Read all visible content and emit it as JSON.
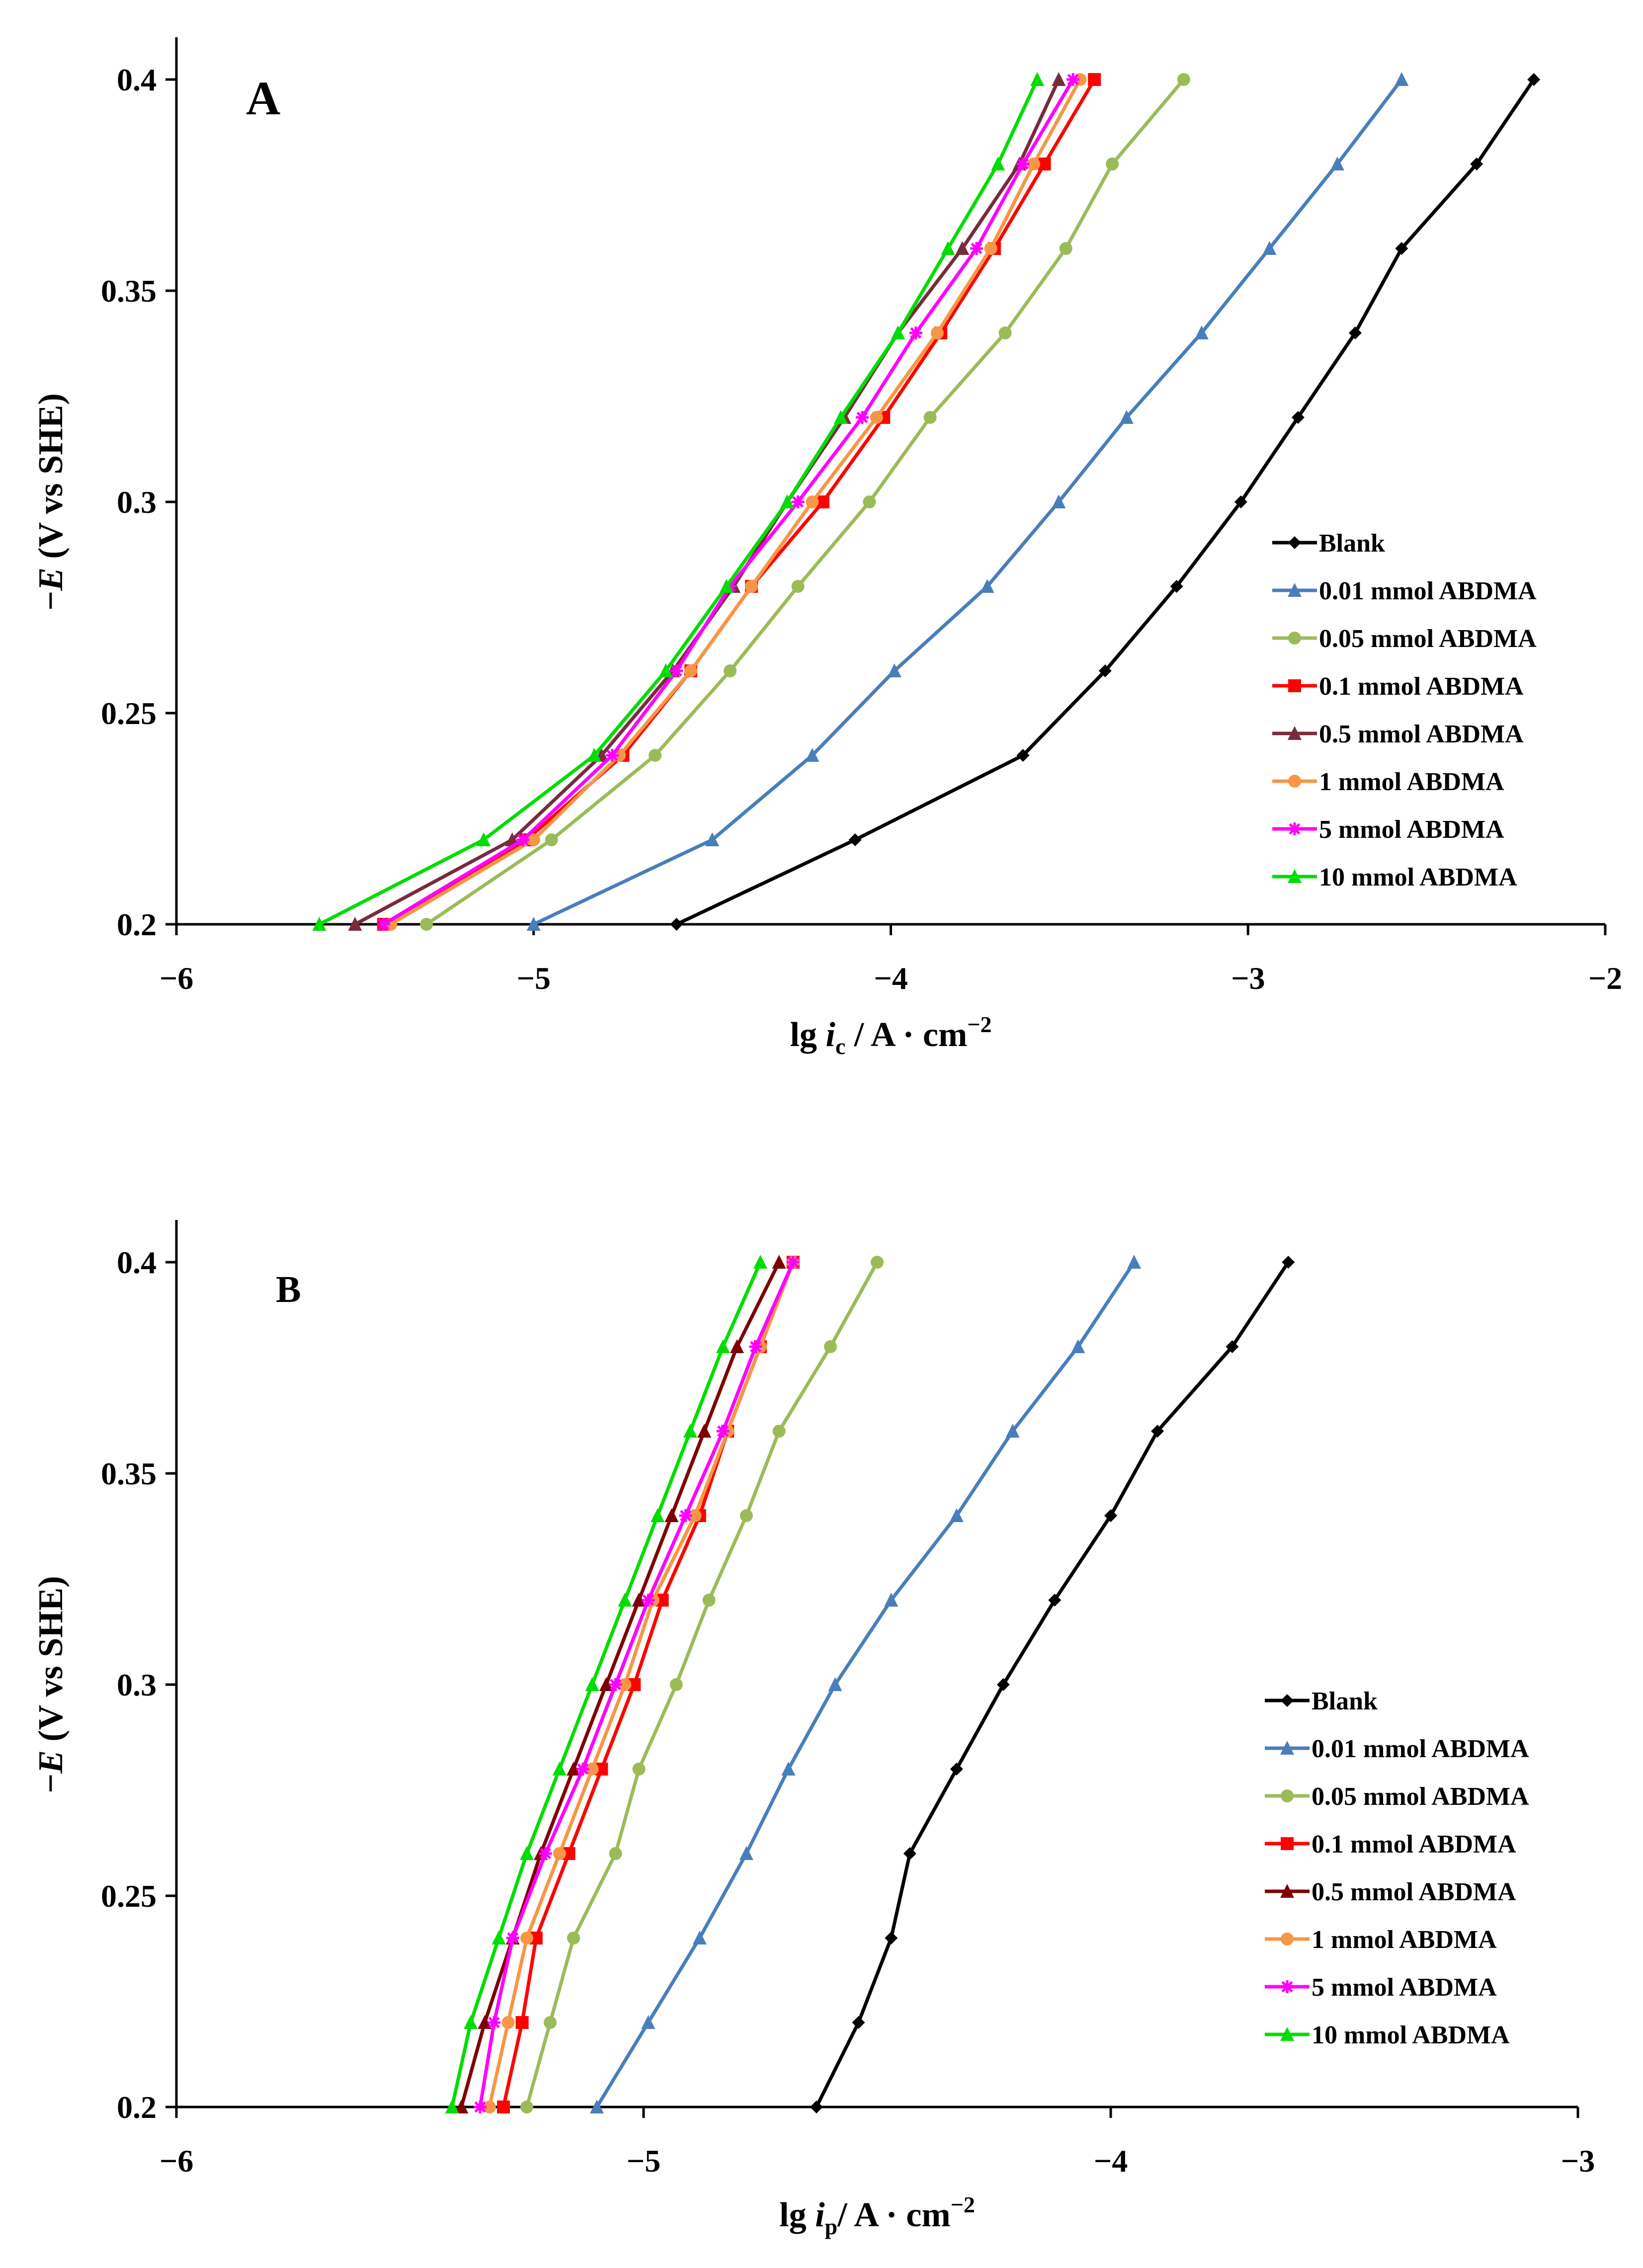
{
  "chart_data": [
    {
      "type": "line",
      "panel_label": "A",
      "xlabel": "lg i_c / A · cm^-2",
      "xlabel_parts": {
        "prefix": "lg ",
        "var": "i",
        "sub": "c",
        "unit": " / A · cm",
        "sup": "−2"
      },
      "ylabel": "-E (V vs SHE)",
      "ylabel_parts": {
        "sign": "−",
        "var": "E",
        "rest": " (V vs SHE)"
      },
      "xlim": [
        -6,
        -2
      ],
      "ylim": [
        0.2,
        0.4
      ],
      "xticks": [
        "−6",
        "−5",
        "−4",
        "−3",
        "−2"
      ],
      "yticks": [
        "0.2",
        "0.25",
        "0.3",
        "0.35",
        "0.4"
      ],
      "legend_position": "bottom-right",
      "y": [
        0.2,
        0.22,
        0.24,
        0.26,
        0.28,
        0.3,
        0.32,
        0.34,
        0.36,
        0.38,
        0.4
      ],
      "series": [
        {
          "name": "Blank",
          "color": "#000000",
          "marker": "diamond",
          "x": [
            -4.6,
            -4.1,
            -3.63,
            -3.4,
            -3.2,
            -3.02,
            -2.86,
            -2.7,
            -2.57,
            -2.36,
            -2.2
          ]
        },
        {
          "name": "0.01 mmol ABDMA",
          "color": "#4a7ebb",
          "marker": "triangle",
          "x": [
            -5.0,
            -4.5,
            -4.22,
            -3.99,
            -3.73,
            -3.53,
            -3.34,
            -3.13,
            -2.94,
            -2.75,
            -2.57
          ]
        },
        {
          "name": "0.05 mmol ABDMA",
          "color": "#9bbb59",
          "marker": "circle",
          "x": [
            -5.3,
            -4.95,
            -4.66,
            -4.45,
            -4.26,
            -4.06,
            -3.89,
            -3.68,
            -3.51,
            -3.38,
            -3.18
          ]
        },
        {
          "name": "0.1 mmol ABDMA",
          "color": "#ff0000",
          "marker": "square",
          "x": [
            -5.42,
            -5.02,
            -4.75,
            -4.56,
            -4.39,
            -4.19,
            -4.02,
            -3.86,
            -3.71,
            -3.57,
            -3.43
          ]
        },
        {
          "name": "0.5 mmol ABDMA",
          "color": "#772c3b",
          "marker": "triangle",
          "x": [
            -5.5,
            -5.06,
            -4.81,
            -4.61,
            -4.44,
            -4.29,
            -4.13,
            -3.98,
            -3.8,
            -3.64,
            -3.53
          ]
        },
        {
          "name": "1 mmol ABDMA",
          "color": "#f79646",
          "marker": "circle",
          "x": [
            -5.4,
            -5.0,
            -4.76,
            -4.56,
            -4.39,
            -4.22,
            -4.04,
            -3.87,
            -3.72,
            -3.6,
            -3.47
          ]
        },
        {
          "name": "5 mmol ABDMA",
          "color": "#ff00ff",
          "marker": "star",
          "x": [
            -5.42,
            -5.03,
            -4.78,
            -4.6,
            -4.45,
            -4.26,
            -4.08,
            -3.93,
            -3.76,
            -3.63,
            -3.49
          ]
        },
        {
          "name": "10 mmol ABDMA",
          "color": "#00dd00",
          "marker": "triangle",
          "x": [
            -5.6,
            -5.14,
            -4.83,
            -4.63,
            -4.46,
            -4.29,
            -4.14,
            -3.98,
            -3.84,
            -3.7,
            -3.59
          ]
        }
      ]
    },
    {
      "type": "line",
      "panel_label": "B",
      "xlabel": "lg i_p / A · cm^-2",
      "xlabel_parts": {
        "prefix": "lg ",
        "var": "i",
        "sub": "p",
        "unit": "/  A · cm",
        "sup": "−2"
      },
      "ylabel": "-E (V vs SHE)",
      "ylabel_parts": {
        "sign": "−",
        "var": "E",
        "rest": " (V vs SHE)"
      },
      "xlim": [
        -6,
        -3
      ],
      "ylim": [
        0.2,
        0.4
      ],
      "xticks": [
        "−6",
        "−5",
        "−4",
        "−3"
      ],
      "yticks": [
        "0.2",
        "0.25",
        "0.3",
        "0.35",
        "0.4"
      ],
      "legend_position": "bottom-right",
      "y": [
        0.2,
        0.22,
        0.24,
        0.26,
        0.28,
        0.3,
        0.32,
        0.34,
        0.36,
        0.38,
        0.4
      ],
      "series": [
        {
          "name": "Blank",
          "color": "#000000",
          "marker": "diamond",
          "x": [
            -4.63,
            -4.54,
            -4.47,
            -4.43,
            -4.33,
            -4.23,
            -4.12,
            -4.0,
            -3.9,
            -3.74,
            -3.62
          ]
        },
        {
          "name": "0.01 mmol ABDMA",
          "color": "#4a7ebb",
          "marker": "triangle",
          "x": [
            -5.1,
            -4.99,
            -4.88,
            -4.78,
            -4.69,
            -4.59,
            -4.47,
            -4.33,
            -4.21,
            -4.07,
            -3.95
          ]
        },
        {
          "name": "0.05 mmol ABDMA",
          "color": "#9bbb59",
          "marker": "circle",
          "x": [
            -5.25,
            -5.2,
            -5.15,
            -5.06,
            -5.01,
            -4.93,
            -4.86,
            -4.78,
            -4.71,
            -4.6,
            -4.5
          ]
        },
        {
          "name": "0.1 mmol ABDMA",
          "color": "#ff0000",
          "marker": "square",
          "x": [
            -5.3,
            -5.26,
            -5.23,
            -5.16,
            -5.09,
            -5.02,
            -4.96,
            -4.88,
            -4.82,
            -4.75,
            -4.68
          ]
        },
        {
          "name": "0.5 mmol ABDMA",
          "color": "#7f0000",
          "marker": "triangle",
          "x": [
            -5.39,
            -5.34,
            -5.28,
            -5.22,
            -5.15,
            -5.08,
            -5.01,
            -4.94,
            -4.87,
            -4.8,
            -4.71
          ]
        },
        {
          "name": "1 mmol ABDMA",
          "color": "#f79646",
          "marker": "circle",
          "x": [
            -5.33,
            -5.29,
            -5.25,
            -5.18,
            -5.11,
            -5.04,
            -4.98,
            -4.89,
            -4.82,
            -4.75,
            -4.68
          ]
        },
        {
          "name": "5 mmol ABDMA",
          "color": "#ff00ff",
          "marker": "star",
          "x": [
            -5.35,
            -5.32,
            -5.28,
            -5.21,
            -5.13,
            -5.06,
            -4.99,
            -4.91,
            -4.83,
            -4.76,
            -4.68
          ]
        },
        {
          "name": "10 mmol ABDMA",
          "color": "#00dd00",
          "marker": "triangle",
          "x": [
            -5.41,
            -5.37,
            -5.31,
            -5.25,
            -5.18,
            -5.11,
            -5.04,
            -4.97,
            -4.9,
            -4.83,
            -4.75
          ]
        }
      ]
    }
  ]
}
